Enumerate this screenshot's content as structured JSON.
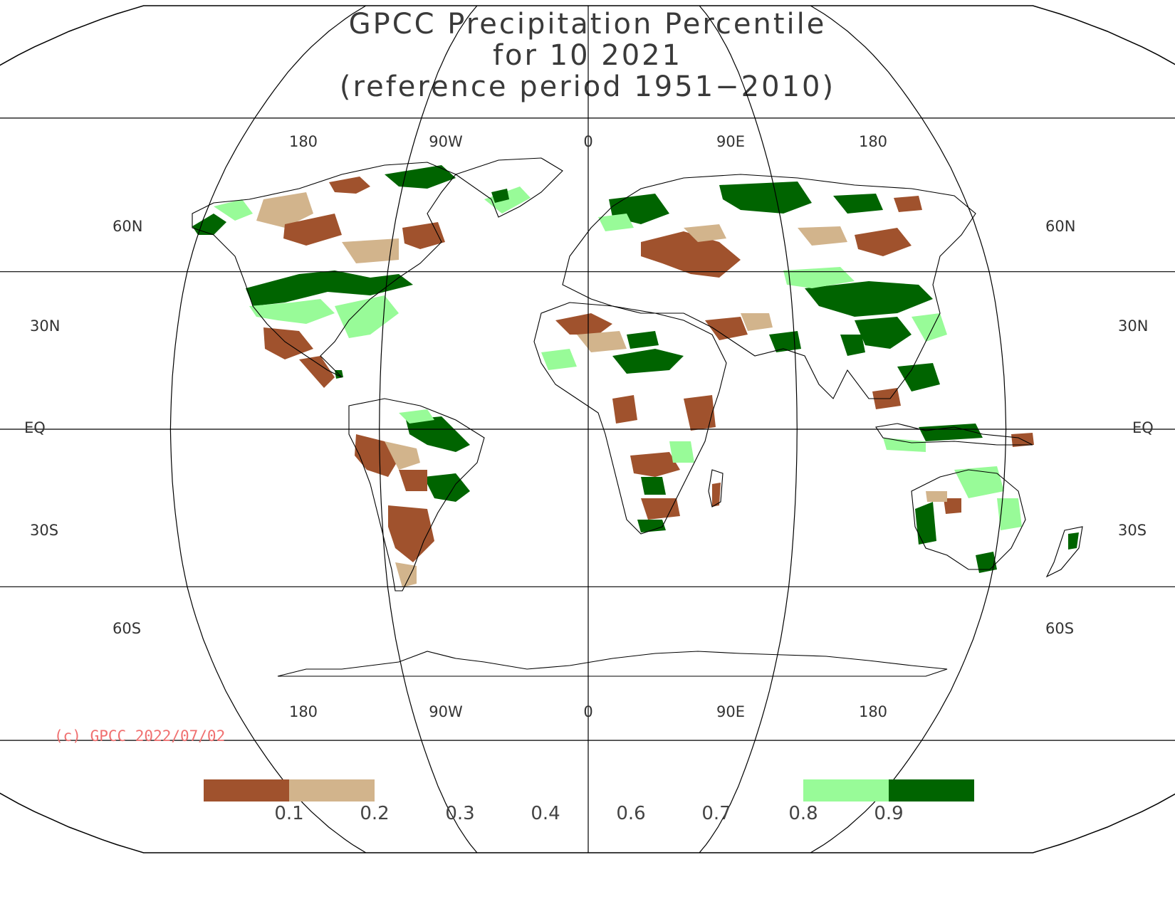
{
  "title": {
    "line1": "GPCC Precipitation Percentile",
    "line2": "for 10 2021",
    "line3": "(reference period 1951−2010)"
  },
  "map": {
    "projection": "robinson",
    "top_lon_labels": [
      "180",
      "90W",
      "0",
      "90E",
      "180"
    ],
    "bottom_lon_labels": [
      "180",
      "90W",
      "0",
      "90E",
      "180"
    ],
    "lat_labels": [
      "60N",
      "30N",
      "EQ",
      "30S",
      "60S"
    ],
    "colors": {
      "frame": "#000000",
      "coast": "#000000"
    }
  },
  "copyright": "(c) GPCC 2022/07/02",
  "legend": {
    "labels": [
      "0.1",
      "0.2",
      "0.3",
      "0.4",
      "0.6",
      "0.7",
      "0.8",
      "0.9"
    ],
    "bins": [
      {
        "range": "<0.1",
        "color": "#a0522d"
      },
      {
        "range": "0.1-0.2",
        "color": "#d2b48c"
      },
      {
        "range": "0.2-0.8",
        "color": "#ffffff"
      },
      {
        "range": "0.8-0.9",
        "color": "#98fb98"
      },
      {
        "range": ">0.9",
        "color": "#006400"
      }
    ]
  }
}
